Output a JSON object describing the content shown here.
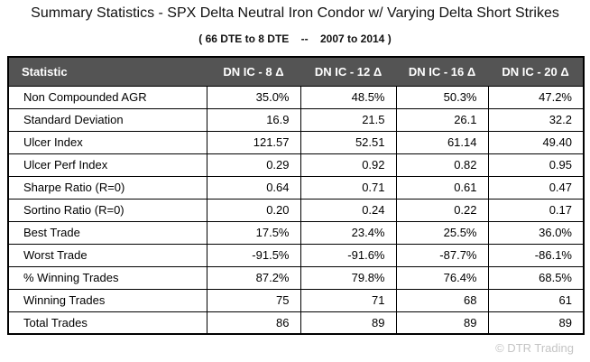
{
  "title": "Summary Statistics - SPX Delta Neutral Iron Condor w/ Varying Delta Short Strikes",
  "subtitle": "( 66 DTE to 8 DTE    --    2007 to 2014 )",
  "chart_data": {
    "type": "table",
    "title": "Summary Statistics - SPX Delta Neutral Iron Condor w/ Varying Delta Short Strikes",
    "subtitle": "( 66 DTE to 8 DTE -- 2007 to 2014 )",
    "columns": [
      "Statistic",
      "DN IC - 8 Δ",
      "DN IC - 12 Δ",
      "DN IC - 16 Δ",
      "DN IC - 20 Δ"
    ],
    "rows": [
      {
        "label": "Non Compounded AGR",
        "values": [
          "35.0%",
          "48.5%",
          "50.3%",
          "47.2%"
        ]
      },
      {
        "label": "Standard Deviation",
        "values": [
          "16.9",
          "21.5",
          "26.1",
          "32.2"
        ]
      },
      {
        "label": "Ulcer Index",
        "values": [
          "121.57",
          "52.51",
          "61.14",
          "49.40"
        ]
      },
      {
        "label": "Ulcer Perf Index",
        "values": [
          "0.29",
          "0.92",
          "0.82",
          "0.95"
        ]
      },
      {
        "label": "Sharpe Ratio (R=0)",
        "values": [
          "0.64",
          "0.71",
          "0.61",
          "0.47"
        ]
      },
      {
        "label": "Sortino Ratio (R=0)",
        "values": [
          "0.20",
          "0.24",
          "0.22",
          "0.17"
        ]
      },
      {
        "label": "Best Trade",
        "values": [
          "17.5%",
          "23.4%",
          "25.5%",
          "36.0%"
        ]
      },
      {
        "label": "Worst Trade",
        "values": [
          "-91.5%",
          "-91.6%",
          "-87.7%",
          "-86.1%"
        ]
      },
      {
        "label": "% Winning Trades",
        "values": [
          "87.2%",
          "79.8%",
          "76.4%",
          "68.5%"
        ]
      },
      {
        "label": "Winning Trades",
        "values": [
          "75",
          "71",
          "68",
          "61"
        ]
      },
      {
        "label": "Total Trades",
        "values": [
          "86",
          "89",
          "89",
          "89"
        ]
      }
    ]
  },
  "footer": {
    "copyright": "© DTR Trading"
  },
  "colors": {
    "header_bg": "#545454",
    "header_text": "#ffffff",
    "border": "#000000",
    "copyright_text": "#c4c4c4",
    "background": "#ffffff"
  }
}
